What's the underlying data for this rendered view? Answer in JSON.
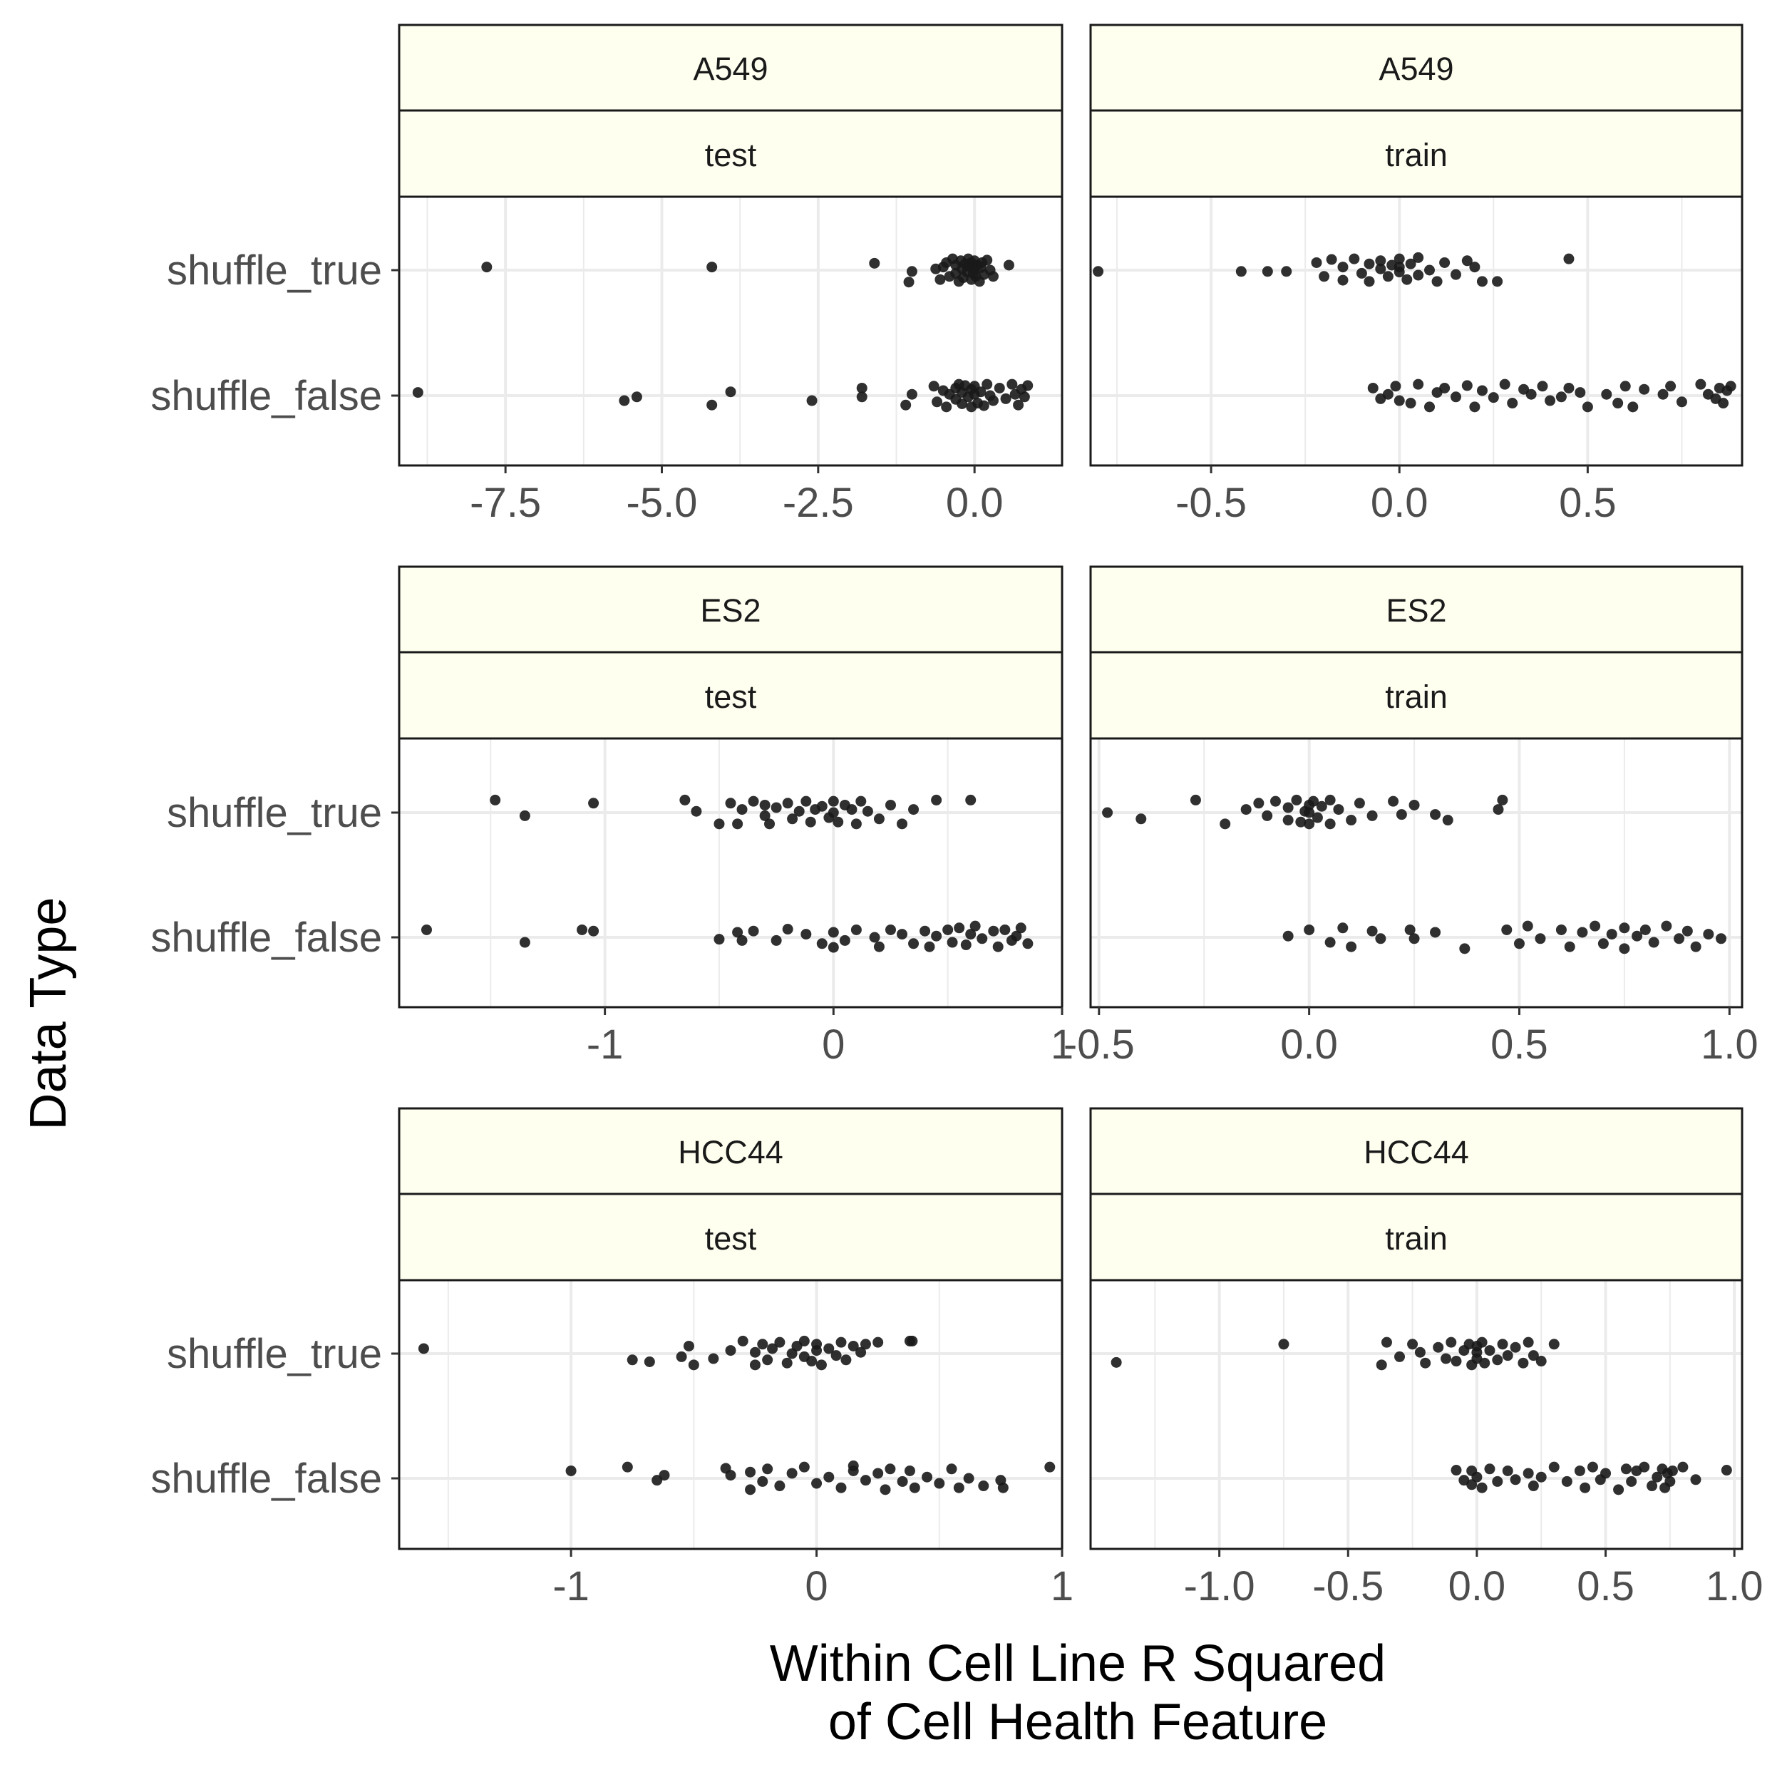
{
  "ylabel": "Data Type",
  "xlabel_lines": [
    "Within Cell Line R Squared",
    "of Cell Health Feature"
  ],
  "categories": [
    "shuffle_true",
    "shuffle_false"
  ],
  "colors": {
    "point": "#1a1a1a",
    "strip_fill": "#fffff0",
    "grid": "#ebebeb",
    "panel_border": "#1a1a1a"
  },
  "chart_data": [
    {
      "type": "scatter",
      "strip1": "A549",
      "strip2": "test",
      "xlim": [
        -9.2,
        1.4
      ],
      "ticks": [
        -7.5,
        -5.0,
        -2.5,
        0.0
      ],
      "tick_labels": [
        "-7.5",
        "-5.0",
        "-2.5",
        "0.0"
      ],
      "minor": [
        -8.75,
        -6.25,
        -3.75,
        -1.25
      ],
      "series": [
        {
          "category": "shuffle_true",
          "x": [
            -7.8,
            -4.2,
            -1.6,
            -1.05,
            -1.0,
            -0.62,
            -0.55,
            -0.5,
            -0.45,
            -0.4,
            -0.35,
            -0.3,
            -0.3,
            -0.25,
            -0.22,
            -0.2,
            -0.18,
            -0.15,
            -0.12,
            -0.1,
            -0.08,
            -0.05,
            -0.05,
            -0.02,
            0.0,
            0.0,
            0.02,
            0.05,
            0.08,
            0.1,
            0.12,
            0.15,
            0.2,
            0.25,
            0.3,
            0.55
          ],
          "j": [
            0.05,
            0.05,
            0.11,
            -0.19,
            -0.02,
            0.02,
            -0.15,
            0.05,
            0.12,
            -0.1,
            0.18,
            -0.05,
            0.08,
            -0.18,
            0.15,
            0.02,
            -0.12,
            0.1,
            -0.03,
            0.18,
            0.06,
            -0.15,
            0.12,
            -0.05,
            0.02,
            0.15,
            -0.1,
            0.08,
            -0.18,
            0.04,
            0.12,
            -0.07,
            0.16,
            0.0,
            -0.1,
            0.08
          ]
        },
        {
          "category": "shuffle_false",
          "x": [
            -8.9,
            -5.6,
            -5.4,
            -4.2,
            -3.9,
            -2.6,
            -1.8,
            -1.8,
            -1.1,
            -1.0,
            -0.65,
            -0.6,
            -0.5,
            -0.45,
            -0.4,
            -0.3,
            -0.3,
            -0.25,
            -0.2,
            -0.2,
            -0.15,
            -0.1,
            -0.05,
            -0.05,
            0.0,
            0.0,
            0.05,
            0.1,
            0.15,
            0.2,
            0.25,
            0.3,
            0.4,
            0.5,
            0.6,
            0.65,
            0.7,
            0.75,
            0.8,
            0.85
          ],
          "j": [
            0.05,
            -0.08,
            -0.02,
            -0.15,
            0.06,
            -0.08,
            0.12,
            -0.02,
            -0.15,
            0.02,
            0.15,
            -0.1,
            0.08,
            -0.18,
            0.02,
            0.12,
            -0.06,
            0.18,
            -0.13,
            0.05,
            0.16,
            -0.02,
            -0.18,
            0.1,
            0.02,
            0.15,
            -0.12,
            0.06,
            -0.16,
            0.18,
            0.0,
            -0.08,
            0.12,
            -0.05,
            0.18,
            0.02,
            -0.15,
            0.1,
            -0.02,
            0.16
          ]
        }
      ]
    },
    {
      "type": "scatter",
      "strip1": "A549",
      "strip2": "train",
      "xlim": [
        -0.82,
        0.91
      ],
      "ticks": [
        -0.5,
        0.0,
        0.5
      ],
      "tick_labels": [
        "-0.5",
        "0.0",
        "0.5"
      ],
      "minor": [
        -0.75,
        -0.25,
        0.25,
        0.75
      ],
      "series": [
        {
          "category": "shuffle_true",
          "x": [
            -0.8,
            -0.42,
            -0.35,
            -0.3,
            -0.22,
            -0.2,
            -0.18,
            -0.15,
            -0.15,
            -0.12,
            -0.1,
            -0.08,
            -0.08,
            -0.05,
            -0.05,
            -0.03,
            -0.02,
            0.0,
            0.0,
            0.0,
            0.02,
            0.03,
            0.05,
            0.05,
            0.08,
            0.1,
            0.12,
            0.15,
            0.18,
            0.2,
            0.22,
            0.26,
            0.45
          ],
          "j": [
            -0.02,
            -0.02,
            -0.02,
            -0.02,
            0.12,
            -0.1,
            0.17,
            0.05,
            -0.16,
            0.18,
            -0.05,
            0.1,
            -0.18,
            0.02,
            0.15,
            -0.1,
            0.08,
            0.18,
            -0.03,
            0.05,
            -0.15,
            0.1,
            0.2,
            -0.08,
            0.0,
            -0.18,
            0.12,
            -0.07,
            0.15,
            0.05,
            -0.18,
            -0.18,
            0.18
          ]
        },
        {
          "category": "shuffle_false",
          "x": [
            -0.07,
            -0.05,
            -0.03,
            -0.01,
            0.0,
            0.03,
            0.05,
            0.08,
            0.1,
            0.12,
            0.15,
            0.18,
            0.2,
            0.22,
            0.25,
            0.28,
            0.3,
            0.33,
            0.35,
            0.38,
            0.4,
            0.43,
            0.45,
            0.48,
            0.5,
            0.55,
            0.58,
            0.6,
            0.62,
            0.65,
            0.7,
            0.72,
            0.75,
            0.8,
            0.82,
            0.84,
            0.85,
            0.86,
            0.87,
            0.88
          ],
          "j": [
            0.12,
            -0.05,
            0.02,
            0.15,
            -0.08,
            -0.12,
            0.18,
            -0.18,
            0.05,
            0.12,
            -0.02,
            0.16,
            -0.18,
            0.08,
            -0.03,
            0.18,
            -0.12,
            0.1,
            0.02,
            0.15,
            -0.08,
            -0.02,
            0.12,
            0.05,
            -0.18,
            0.02,
            -0.12,
            0.15,
            -0.18,
            0.1,
            0.02,
            0.15,
            -0.1,
            0.18,
            0.02,
            -0.05,
            0.12,
            -0.12,
            0.08,
            0.15
          ]
        }
      ]
    },
    {
      "type": "scatter",
      "strip1": "ES2",
      "strip2": "test",
      "xlim": [
        -1.9,
        1.0
      ],
      "ticks": [
        -1,
        0,
        1
      ],
      "tick_labels": [
        "-1",
        "0",
        "1"
      ],
      "minor": [
        -1.5,
        -0.5,
        0.5
      ],
      "series": [
        {
          "category": "shuffle_true",
          "x": [
            -1.48,
            -1.35,
            -1.05,
            -0.65,
            -0.6,
            -0.5,
            -0.45,
            -0.42,
            -0.4,
            -0.35,
            -0.3,
            -0.3,
            -0.28,
            -0.25,
            -0.2,
            -0.18,
            -0.15,
            -0.12,
            -0.1,
            -0.08,
            -0.05,
            -0.02,
            0.0,
            0.0,
            0.02,
            0.05,
            0.08,
            0.1,
            0.12,
            0.15,
            0.2,
            0.25,
            0.3,
            0.35,
            0.45,
            0.6
          ],
          "j": [
            0.2,
            -0.05,
            0.15,
            0.2,
            0.02,
            -0.18,
            0.15,
            -0.18,
            0.05,
            0.18,
            -0.05,
            0.12,
            -0.18,
            0.08,
            0.15,
            -0.1,
            0.02,
            0.18,
            -0.15,
            0.05,
            0.1,
            -0.08,
            0.18,
            0.0,
            -0.15,
            0.12,
            0.05,
            -0.18,
            0.18,
            0.02,
            -0.1,
            0.12,
            -0.18,
            0.05,
            0.2,
            0.2
          ]
        },
        {
          "category": "shuffle_false",
          "x": [
            -1.78,
            -1.35,
            -1.1,
            -1.05,
            -0.5,
            -0.42,
            -0.4,
            -0.35,
            -0.25,
            -0.2,
            -0.12,
            -0.05,
            0.0,
            0.0,
            0.05,
            0.1,
            0.18,
            0.2,
            0.25,
            0.3,
            0.35,
            0.4,
            0.42,
            0.45,
            0.5,
            0.52,
            0.55,
            0.58,
            0.6,
            0.62,
            0.65,
            0.7,
            0.72,
            0.75,
            0.78,
            0.8,
            0.82,
            0.85
          ],
          "j": [
            0.12,
            -0.08,
            0.12,
            0.1,
            -0.03,
            0.08,
            -0.05,
            0.1,
            -0.05,
            0.13,
            0.05,
            -0.1,
            0.08,
            -0.16,
            -0.05,
            0.12,
            0.0,
            -0.15,
            0.12,
            0.05,
            -0.1,
            0.1,
            -0.15,
            0.02,
            0.12,
            -0.08,
            0.15,
            -0.12,
            0.05,
            0.18,
            -0.02,
            0.1,
            -0.15,
            0.12,
            -0.05,
            0.02,
            0.15,
            -0.1
          ]
        }
      ]
    },
    {
      "type": "scatter",
      "strip1": "ES2",
      "strip2": "train",
      "xlim": [
        -0.52,
        1.03
      ],
      "ticks": [
        -0.5,
        0.0,
        0.5,
        1.0
      ],
      "tick_labels": [
        "-0.5",
        "0.0",
        "0.5",
        "1.0"
      ],
      "minor": [
        -0.25,
        0.25,
        0.75
      ],
      "series": [
        {
          "category": "shuffle_true",
          "x": [
            -0.48,
            -0.4,
            -0.27,
            -0.2,
            -0.15,
            -0.12,
            -0.1,
            -0.08,
            -0.05,
            -0.05,
            -0.03,
            -0.02,
            -0.01,
            0.0,
            0.0,
            0.0,
            0.01,
            0.02,
            0.03,
            0.05,
            0.05,
            0.07,
            0.1,
            0.12,
            0.15,
            0.2,
            0.22,
            0.25,
            0.3,
            0.33,
            0.45,
            0.46
          ],
          "j": [
            0.0,
            -0.1,
            0.2,
            -0.18,
            0.05,
            0.15,
            -0.05,
            0.18,
            -0.12,
            0.08,
            0.2,
            -0.15,
            0.02,
            0.12,
            -0.18,
            0.0,
            0.18,
            -0.08,
            0.1,
            0.2,
            -0.18,
            0.05,
            -0.12,
            0.15,
            -0.05,
            0.18,
            -0.03,
            0.12,
            -0.03,
            -0.12,
            0.05,
            0.2
          ]
        },
        {
          "category": "shuffle_false",
          "x": [
            -0.05,
            0.0,
            0.05,
            0.08,
            0.1,
            0.15,
            0.17,
            0.24,
            0.25,
            0.3,
            0.37,
            0.47,
            0.5,
            0.52,
            0.55,
            0.6,
            0.62,
            0.65,
            0.68,
            0.7,
            0.72,
            0.75,
            0.75,
            0.78,
            0.8,
            0.82,
            0.85,
            0.88,
            0.9,
            0.92,
            0.95,
            0.98
          ],
          "j": [
            0.02,
            0.12,
            -0.08,
            0.15,
            -0.15,
            0.1,
            -0.02,
            0.12,
            -0.02,
            0.08,
            -0.18,
            0.12,
            -0.1,
            0.18,
            -0.02,
            0.12,
            -0.15,
            0.08,
            0.18,
            -0.1,
            0.05,
            0.15,
            -0.18,
            0.02,
            0.12,
            -0.08,
            0.18,
            -0.02,
            0.1,
            -0.15,
            0.05,
            -0.02
          ]
        }
      ]
    },
    {
      "type": "scatter",
      "strip1": "HCC44",
      "strip2": "test",
      "xlim": [
        -1.7,
        1.0
      ],
      "ticks": [
        -1,
        0,
        1
      ],
      "tick_labels": [
        "-1",
        "0",
        "1"
      ],
      "minor": [
        -1.5,
        -0.5,
        0.5
      ],
      "series": [
        {
          "category": "shuffle_true",
          "x": [
            -1.6,
            -0.75,
            -0.68,
            -0.55,
            -0.52,
            -0.5,
            -0.42,
            -0.35,
            -0.3,
            -0.25,
            -0.25,
            -0.22,
            -0.2,
            -0.18,
            -0.15,
            -0.12,
            -0.1,
            -0.08,
            -0.05,
            -0.05,
            -0.02,
            0.0,
            0.0,
            0.02,
            0.05,
            0.08,
            0.1,
            0.12,
            0.15,
            0.18,
            0.2,
            0.25,
            0.38,
            0.39
          ],
          "j": [
            0.08,
            -0.1,
            -0.13,
            -0.05,
            0.12,
            -0.18,
            -0.08,
            0.05,
            0.2,
            -0.18,
            0.02,
            0.15,
            -0.1,
            0.08,
            0.18,
            -0.15,
            0.0,
            0.12,
            -0.05,
            0.2,
            -0.12,
            0.05,
            0.15,
            -0.18,
            0.08,
            -0.03,
            0.18,
            -0.1,
            0.12,
            0.02,
            0.15,
            0.18,
            0.2,
            0.2
          ]
        },
        {
          "category": "shuffle_false",
          "x": [
            -1.0,
            -0.77,
            -0.65,
            -0.62,
            -0.37,
            -0.35,
            -0.27,
            -0.27,
            -0.22,
            -0.2,
            -0.15,
            -0.1,
            -0.05,
            0.0,
            0.05,
            0.1,
            0.15,
            0.15,
            0.2,
            0.25,
            0.28,
            0.3,
            0.35,
            0.38,
            0.4,
            0.45,
            0.5,
            0.55,
            0.58,
            0.62,
            0.68,
            0.75,
            0.76,
            0.95
          ],
          "j": [
            0.12,
            0.18,
            -0.03,
            0.05,
            0.16,
            0.05,
            -0.18,
            0.1,
            -0.05,
            0.15,
            -0.12,
            0.08,
            0.18,
            -0.08,
            0.02,
            -0.15,
            0.12,
            0.2,
            -0.03,
            0.08,
            -0.18,
            0.15,
            -0.05,
            0.12,
            -0.15,
            0.02,
            -0.08,
            0.15,
            -0.15,
            0.0,
            -0.12,
            -0.03,
            -0.15,
            0.18
          ]
        }
      ]
    },
    {
      "type": "scatter",
      "strip1": "HCC44",
      "strip2": "train",
      "xlim": [
        -1.5,
        1.03
      ],
      "ticks": [
        -1.0,
        -0.5,
        0.0,
        0.5,
        1.0
      ],
      "tick_labels": [
        "-1.0",
        "-0.5",
        "0.0",
        "0.5",
        "1.0"
      ],
      "minor": [
        -1.25,
        -0.75,
        -0.25,
        0.25,
        0.75
      ],
      "series": [
        {
          "category": "shuffle_true",
          "x": [
            -1.4,
            -0.75,
            -0.37,
            -0.35,
            -0.3,
            -0.25,
            -0.22,
            -0.2,
            -0.15,
            -0.12,
            -0.1,
            -0.08,
            -0.05,
            -0.03,
            -0.02,
            0.0,
            0.0,
            0.0,
            0.02,
            0.03,
            0.05,
            0.08,
            0.1,
            0.12,
            0.15,
            0.18,
            0.2,
            0.22,
            0.25,
            0.3
          ],
          "j": [
            -0.14,
            0.15,
            -0.18,
            0.18,
            -0.05,
            0.15,
            0.02,
            -0.15,
            0.1,
            -0.08,
            0.18,
            -0.12,
            0.05,
            0.15,
            -0.18,
            0.02,
            -0.08,
            0.12,
            0.18,
            -0.15,
            0.05,
            -0.1,
            0.15,
            -0.03,
            0.1,
            -0.15,
            0.18,
            -0.03,
            -0.12,
            0.15
          ]
        },
        {
          "category": "shuffle_false",
          "x": [
            -0.08,
            -0.05,
            -0.02,
            -0.02,
            0.0,
            0.02,
            0.05,
            0.08,
            0.12,
            0.15,
            0.2,
            0.22,
            0.25,
            0.3,
            0.35,
            0.4,
            0.42,
            0.45,
            0.48,
            0.5,
            0.55,
            0.58,
            0.6,
            0.62,
            0.65,
            0.68,
            0.7,
            0.72,
            0.73,
            0.74,
            0.75,
            0.76,
            0.8,
            0.85,
            0.97
          ],
          "j": [
            0.13,
            -0.03,
            0.12,
            -0.1,
            0.02,
            -0.15,
            0.15,
            -0.05,
            0.12,
            -0.02,
            0.08,
            -0.12,
            0.02,
            0.18,
            -0.05,
            0.12,
            -0.15,
            0.18,
            -0.02,
            0.08,
            -0.18,
            0.15,
            -0.05,
            0.12,
            0.18,
            -0.12,
            0.02,
            0.15,
            -0.15,
            0.08,
            -0.05,
            0.12,
            0.18,
            -0.02,
            0.13
          ]
        }
      ]
    }
  ]
}
